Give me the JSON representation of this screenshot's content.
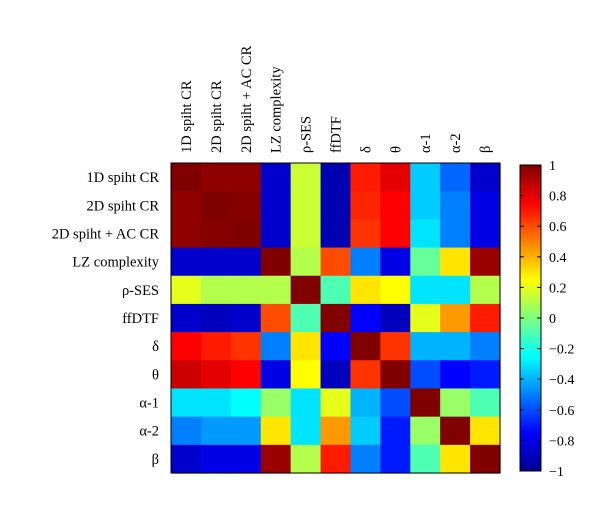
{
  "chart_data": {
    "type": "heatmap",
    "variables": [
      "1D spiht CR",
      "2D spiht CR",
      "2D spiht + AC CR",
      "LZ complexity",
      "ρ-SES",
      "ffDTF",
      "δ",
      "θ",
      "α-1",
      "α-2",
      "β"
    ],
    "matrix": [
      [
        1.0,
        0.97,
        0.97,
        -0.85,
        0.15,
        -0.9,
        0.7,
        0.8,
        -0.35,
        -0.55,
        -0.85
      ],
      [
        0.97,
        1.0,
        0.99,
        -0.85,
        0.15,
        -0.9,
        0.68,
        0.75,
        -0.35,
        -0.5,
        -0.8
      ],
      [
        0.97,
        0.99,
        1.0,
        -0.85,
        0.15,
        -0.9,
        0.65,
        0.75,
        -0.3,
        -0.5,
        -0.8
      ],
      [
        -0.85,
        -0.85,
        -0.85,
        1.0,
        0.1,
        0.6,
        -0.5,
        -0.8,
        -0.05,
        0.3,
        0.95
      ],
      [
        0.2,
        0.1,
        0.1,
        0.1,
        1.0,
        -0.1,
        0.3,
        0.25,
        -0.3,
        -0.3,
        0.1
      ],
      [
        -0.85,
        -0.88,
        -0.85,
        0.6,
        -0.1,
        1.0,
        -0.75,
        -0.88,
        0.2,
        0.45,
        0.7
      ],
      [
        0.75,
        0.7,
        0.65,
        -0.5,
        0.3,
        -0.75,
        1.0,
        0.65,
        -0.4,
        -0.4,
        -0.5
      ],
      [
        0.85,
        0.8,
        0.75,
        -0.8,
        0.25,
        -0.88,
        0.65,
        1.0,
        -0.6,
        -0.75,
        -0.7
      ],
      [
        -0.3,
        -0.3,
        -0.25,
        0.05,
        -0.3,
        0.2,
        -0.4,
        -0.6,
        1.0,
        0.05,
        -0.1
      ],
      [
        -0.5,
        -0.45,
        -0.45,
        0.3,
        -0.3,
        0.45,
        -0.35,
        -0.7,
        0.05,
        1.0,
        0.3
      ],
      [
        -0.85,
        -0.8,
        -0.8,
        0.95,
        0.1,
        0.7,
        -0.5,
        -0.7,
        -0.1,
        0.3,
        1.0
      ]
    ],
    "colorbar": {
      "colormap": "jet",
      "range": [
        -1,
        1
      ],
      "ticks": [
        "1",
        "0.8",
        "0.6",
        "0.4",
        "0.2",
        "0",
        "−0.2",
        "−0.4",
        "−0.6",
        "−0.8",
        "−1"
      ],
      "tick_values": [
        1,
        0.8,
        0.6,
        0.4,
        0.2,
        0,
        -0.2,
        -0.4,
        -0.6,
        -0.8,
        -1
      ]
    },
    "grid": false,
    "legend": "colorbar-right"
  }
}
